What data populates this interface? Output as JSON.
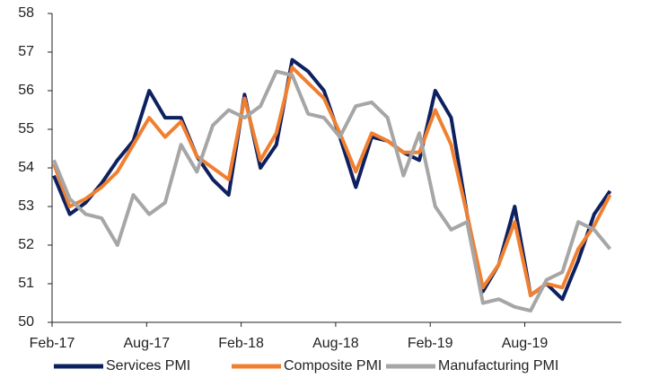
{
  "chart_data": {
    "type": "line",
    "categories": [
      "Feb-17",
      null,
      null,
      null,
      null,
      null,
      "Aug-17",
      null,
      null,
      null,
      null,
      null,
      "Feb-18",
      null,
      null,
      null,
      null,
      null,
      "Aug-18",
      null,
      null,
      null,
      null,
      null,
      "Feb-19",
      null,
      null,
      null,
      null,
      null,
      "Aug-19",
      null,
      null,
      null,
      null,
      null
    ],
    "series": [
      {
        "name": "Services PMI",
        "color": "#0d2060",
        "values": [
          53.8,
          52.8,
          53.1,
          53.6,
          54.2,
          54.7,
          56.0,
          55.3,
          55.3,
          54.3,
          53.7,
          53.3,
          55.9,
          54.0,
          54.6,
          56.8,
          56.5,
          56.0,
          54.8,
          53.5,
          54.8,
          54.7,
          54.4,
          54.2,
          56.0,
          55.3,
          52.8,
          50.8,
          51.5,
          53.0,
          50.7,
          51.0,
          50.6,
          51.6,
          52.8,
          53.4
        ]
      },
      {
        "name": "Composite PMI",
        "color": "#f08030",
        "values": [
          54.1,
          53.0,
          53.2,
          53.5,
          53.9,
          54.6,
          55.3,
          54.8,
          55.2,
          54.3,
          54.0,
          53.7,
          55.8,
          54.2,
          54.9,
          56.6,
          56.2,
          55.8,
          54.9,
          53.9,
          54.9,
          54.7,
          54.4,
          54.4,
          55.5,
          54.6,
          52.8,
          50.9,
          51.5,
          52.6,
          50.7,
          51.0,
          50.9,
          51.9,
          52.5,
          53.3
        ]
      },
      {
        "name": "Manufacturing PMI",
        "color": "#a6a6a6",
        "values": [
          54.2,
          53.2,
          52.8,
          52.7,
          52.0,
          53.3,
          52.8,
          53.1,
          54.6,
          53.9,
          55.1,
          55.5,
          55.3,
          55.6,
          56.5,
          56.4,
          55.4,
          55.3,
          54.8,
          55.6,
          55.7,
          55.3,
          53.8,
          54.9,
          53.0,
          52.4,
          52.6,
          50.5,
          50.6,
          50.4,
          50.3,
          51.1,
          51.3,
          52.6,
          52.4,
          51.9
        ]
      }
    ],
    "ylim": [
      50,
      58
    ],
    "yticks": [
      50,
      51,
      52,
      53,
      54,
      55,
      56,
      57,
      58
    ],
    "legend": "bottom"
  }
}
